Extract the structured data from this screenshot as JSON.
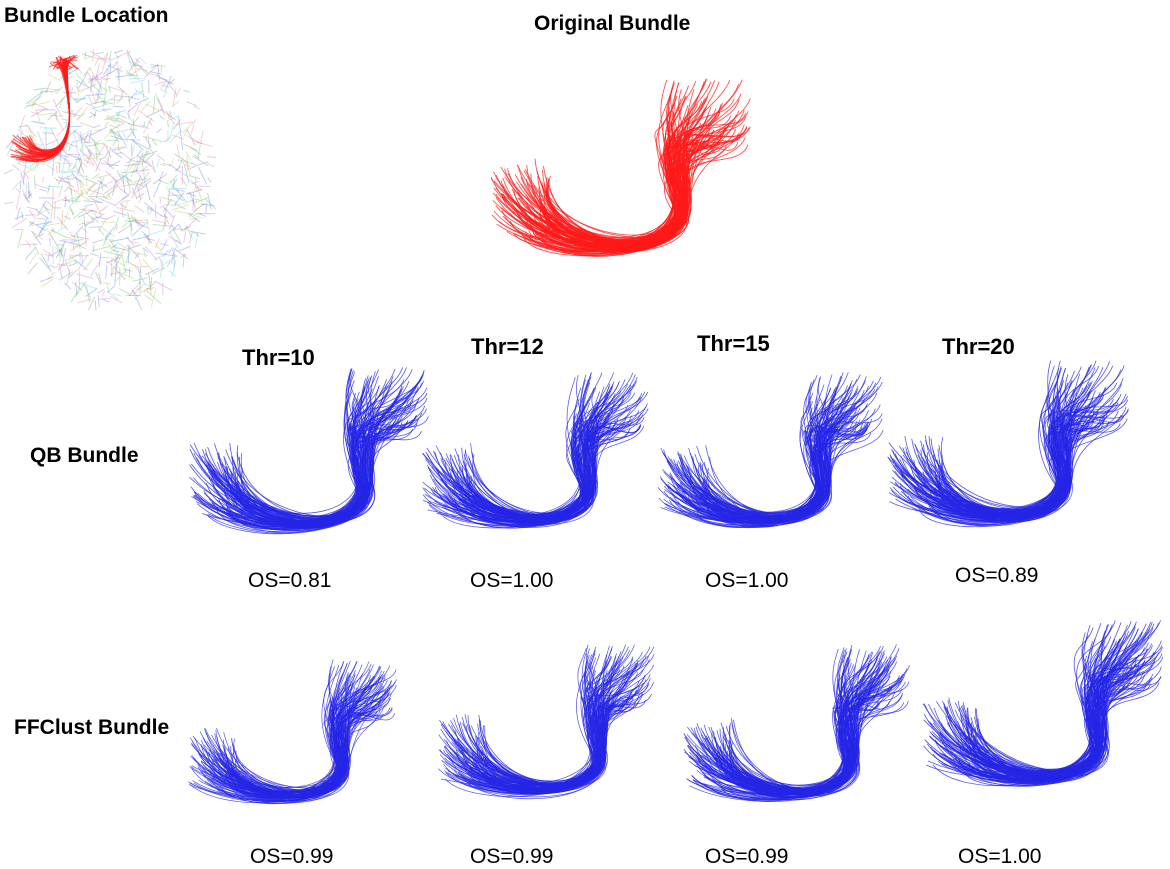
{
  "labels": {
    "bundle_location": "Bundle Location",
    "original_bundle": "Original Bundle",
    "qb_bundle": "QB Bundle",
    "ffclust_bundle": "FFClust Bundle"
  },
  "thresholds": [
    "Thr=10",
    "Thr=12",
    "Thr=15",
    "Thr=20"
  ],
  "qb_scores": [
    "OS=0.81",
    "OS=1.00",
    "OS=1.00",
    "OS=0.89"
  ],
  "ffclust_scores": [
    "OS=0.99",
    "OS=0.99",
    "OS=0.99",
    "OS=1.00"
  ],
  "colors": {
    "original": "#ff1a1a",
    "clustered": "#2626e6",
    "brain_palette": [
      "#6fcf6f",
      "#8a8ae8",
      "#d38ad8",
      "#7fd6d6",
      "#c8c860",
      "#9a9a9a",
      "#e89a9a",
      "#5aa0e0"
    ]
  }
}
